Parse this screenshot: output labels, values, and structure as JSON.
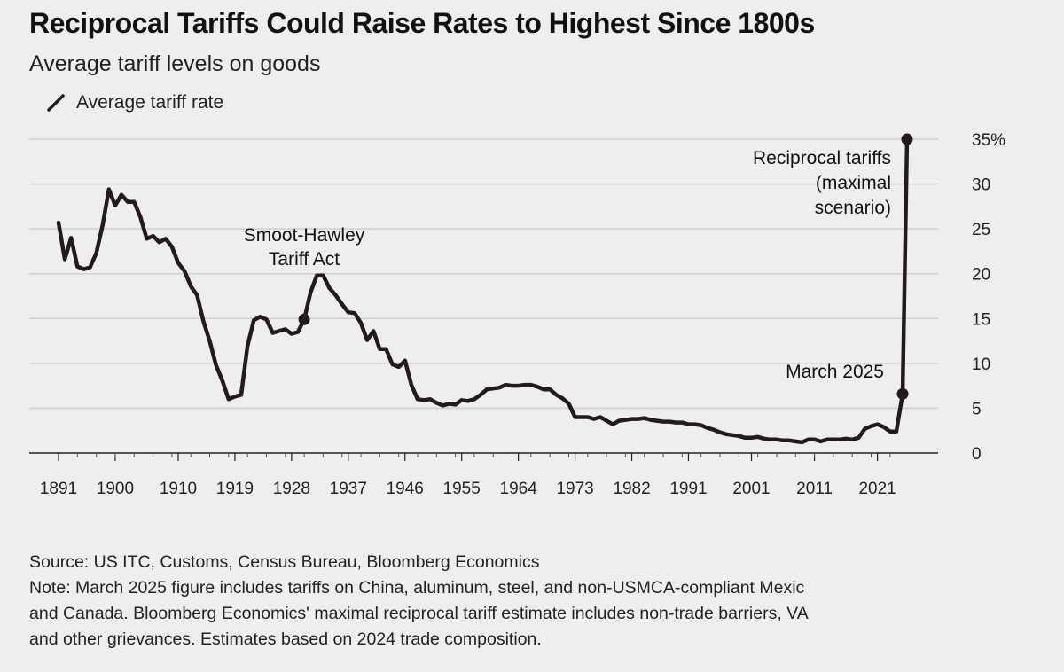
{
  "title": "Reciprocal Tariffs Could Raise Rates to Highest Since 1800s",
  "subtitle": "Average tariff levels on goods",
  "legend": {
    "label": "Average tariff rate"
  },
  "footer": {
    "source": "Source: US ITC, Customs, Census Bureau, Bloomberg Economics",
    "note_line1": "Note: March 2025 figure includes tariffs on China, aluminum, steel, and non-USMCA-compliant Mexic",
    "note_line2": "and Canada. Bloomberg Economics' maximal reciprocal tariff estimate includes non-trade barriers, VA",
    "note_line3": "and other grievances. Estimates based on 2024 trade composition."
  },
  "colors": {
    "line": "#231a1c",
    "background": "#eeeeee",
    "grid": "#cfcfcf"
  },
  "chart_data": {
    "type": "line",
    "grid": true,
    "xlim": [
      1891,
      2027
    ],
    "ylim": [
      0,
      35
    ],
    "y_axis_side": "right",
    "x_ticks": [
      "1891",
      "1900",
      "1910",
      "1919",
      "1928",
      "1937",
      "1946",
      "1955",
      "1964",
      "1973",
      "1982",
      "1991",
      "2001",
      "2011",
      "2021"
    ],
    "y_ticks": [
      "0",
      "5",
      "10",
      "15",
      "20",
      "25",
      "30",
      "35%"
    ],
    "y_tick_values": [
      0,
      5,
      10,
      15,
      20,
      25,
      30,
      35
    ],
    "series": [
      {
        "name": "Average tariff rate",
        "x": [
          1891,
          1892,
          1893,
          1894,
          1895,
          1896,
          1897,
          1898,
          1899,
          1900,
          1901,
          1902,
          1903,
          1904,
          1905,
          1906,
          1907,
          1908,
          1909,
          1910,
          1911,
          1912,
          1913,
          1914,
          1915,
          1916,
          1917,
          1918,
          1919,
          1920,
          1921,
          1922,
          1923,
          1924,
          1925,
          1926,
          1927,
          1928,
          1929,
          1930,
          1931,
          1932,
          1933,
          1934,
          1935,
          1936,
          1937,
          1938,
          1939,
          1940,
          1941,
          1942,
          1943,
          1944,
          1945,
          1946,
          1947,
          1948,
          1949,
          1950,
          1951,
          1952,
          1953,
          1954,
          1955,
          1956,
          1957,
          1958,
          1959,
          1960,
          1961,
          1962,
          1963,
          1964,
          1965,
          1966,
          1967,
          1968,
          1969,
          1970,
          1971,
          1972,
          1973,
          1974,
          1975,
          1976,
          1977,
          1978,
          1979,
          1980,
          1981,
          1982,
          1983,
          1984,
          1985,
          1986,
          1987,
          1988,
          1989,
          1990,
          1991,
          1992,
          1993,
          1994,
          1995,
          1996,
          1997,
          1998,
          1999,
          2000,
          2001,
          2002,
          2003,
          2004,
          2005,
          2006,
          2007,
          2008,
          2009,
          2010,
          2011,
          2012,
          2013,
          2014,
          2015,
          2016,
          2017,
          2018,
          2019,
          2020,
          2021,
          2022,
          2023,
          2024,
          2025,
          2025.7
        ],
        "y": [
          25.7,
          21.6,
          24.0,
          20.8,
          20.5,
          20.7,
          22.3,
          25.4,
          29.4,
          27.6,
          28.8,
          28.0,
          28.0,
          26.3,
          23.9,
          24.2,
          23.5,
          23.9,
          23.0,
          21.2,
          20.3,
          18.6,
          17.6,
          14.7,
          12.5,
          9.8,
          8.1,
          6.0,
          6.3,
          6.5,
          11.9,
          14.8,
          15.2,
          14.9,
          13.4,
          13.6,
          13.8,
          13.3,
          13.5,
          14.9,
          17.9,
          19.8,
          19.8,
          18.4,
          17.6,
          16.6,
          15.7,
          15.6,
          14.5,
          12.6,
          13.6,
          11.6,
          11.6,
          9.9,
          9.6,
          10.3,
          7.6,
          6.0,
          5.9,
          6.0,
          5.6,
          5.3,
          5.5,
          5.4,
          5.9,
          5.8,
          6.0,
          6.5,
          7.1,
          7.2,
          7.3,
          7.6,
          7.5,
          7.5,
          7.6,
          7.6,
          7.4,
          7.1,
          7.1,
          6.5,
          6.1,
          5.5,
          4.0,
          4.0,
          4.0,
          3.8,
          4.0,
          3.6,
          3.2,
          3.6,
          3.7,
          3.8,
          3.8,
          3.9,
          3.7,
          3.6,
          3.5,
          3.5,
          3.4,
          3.4,
          3.2,
          3.2,
          3.1,
          2.8,
          2.6,
          2.3,
          2.1,
          2.0,
          1.9,
          1.7,
          1.7,
          1.8,
          1.6,
          1.5,
          1.5,
          1.4,
          1.4,
          1.3,
          1.2,
          1.5,
          1.5,
          1.3,
          1.5,
          1.5,
          1.5,
          1.6,
          1.5,
          1.7,
          2.7,
          3.0,
          3.2,
          2.9,
          2.4,
          2.4,
          6.6,
          35.0
        ]
      }
    ],
    "markers": [
      {
        "x": 1930,
        "y": 14.9,
        "label_line1": "Smoot-Hawley",
        "label_line2": "Tariff Act"
      },
      {
        "x": 2025,
        "y": 6.6,
        "label_line1": "March 2025"
      },
      {
        "x": 2025.7,
        "y": 35.0,
        "label_line1": "Reciprocal tariffs",
        "label_line2": "(maximal",
        "label_line3": "scenario)"
      }
    ]
  }
}
